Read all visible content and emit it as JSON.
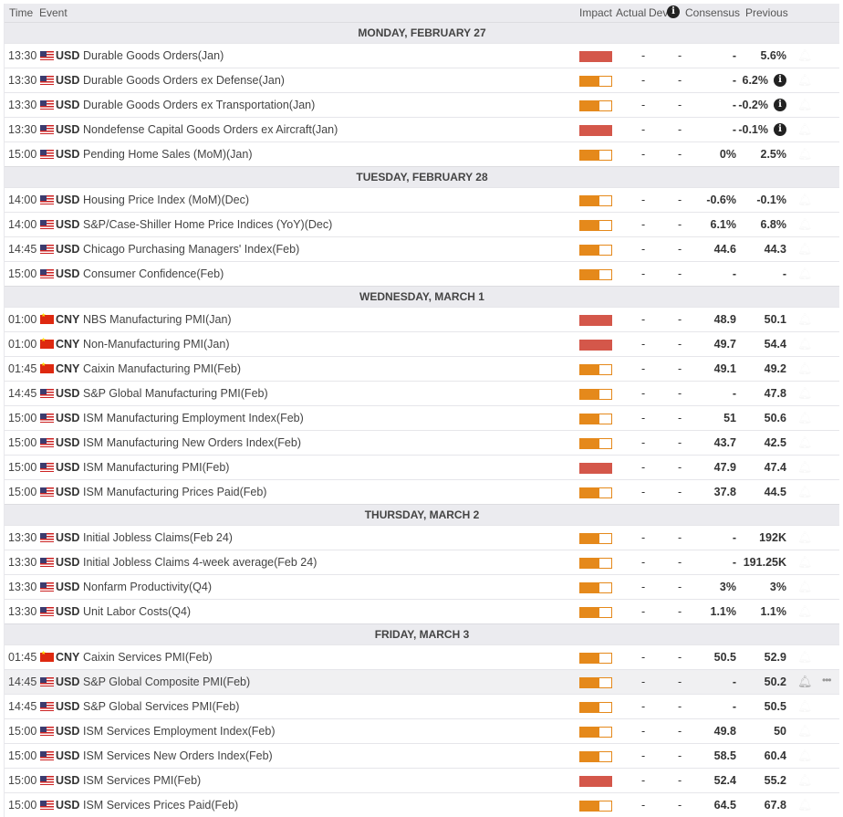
{
  "header": {
    "time": "Time",
    "event": "Event",
    "impact": "Impact",
    "actual": "Actual",
    "dev": "Dev",
    "consensus": "Consensus",
    "previous": "Previous"
  },
  "colors": {
    "high": "#d4574a",
    "medium": "#e5891b"
  },
  "days": [
    {
      "label": "MONDAY, FEBRUARY 27",
      "rows": [
        {
          "time": "13:30",
          "flag": "us",
          "currency": "USD",
          "event": "Durable Goods Orders(Jan)",
          "impact": "high",
          "actual": "-",
          "dev": "-",
          "consensus": "-",
          "previous": "5.6%"
        },
        {
          "time": "13:30",
          "flag": "us",
          "currency": "USD",
          "event": "Durable Goods Orders ex Defense(Jan)",
          "impact": "medium",
          "actual": "-",
          "dev": "-",
          "consensus": "-",
          "previous": "6.2%",
          "info": true
        },
        {
          "time": "13:30",
          "flag": "us",
          "currency": "USD",
          "event": "Durable Goods Orders ex Transportation(Jan)",
          "impact": "medium",
          "actual": "-",
          "dev": "-",
          "consensus": "-",
          "previous": "-0.2%",
          "info": true
        },
        {
          "time": "13:30",
          "flag": "us",
          "currency": "USD",
          "event": "Nondefense Capital Goods Orders ex Aircraft(Jan)",
          "impact": "high",
          "actual": "-",
          "dev": "-",
          "consensus": "-",
          "previous": "-0.1%",
          "info": true
        },
        {
          "time": "15:00",
          "flag": "us",
          "currency": "USD",
          "event": "Pending Home Sales (MoM)(Jan)",
          "impact": "medium",
          "actual": "-",
          "dev": "-",
          "consensus": "0%",
          "previous": "2.5%"
        }
      ]
    },
    {
      "label": "TUESDAY, FEBRUARY 28",
      "rows": [
        {
          "time": "14:00",
          "flag": "us",
          "currency": "USD",
          "event": "Housing Price Index (MoM)(Dec)",
          "impact": "medium",
          "actual": "-",
          "dev": "-",
          "consensus": "-0.6%",
          "previous": "-0.1%"
        },
        {
          "time": "14:00",
          "flag": "us",
          "currency": "USD",
          "event": "S&P/Case-Shiller Home Price Indices (YoY)(Dec)",
          "impact": "medium",
          "actual": "-",
          "dev": "-",
          "consensus": "6.1%",
          "previous": "6.8%"
        },
        {
          "time": "14:45",
          "flag": "us",
          "currency": "USD",
          "event": "Chicago Purchasing Managers' Index(Feb)",
          "impact": "medium",
          "actual": "-",
          "dev": "-",
          "consensus": "44.6",
          "previous": "44.3"
        },
        {
          "time": "15:00",
          "flag": "us",
          "currency": "USD",
          "event": "Consumer Confidence(Feb)",
          "impact": "medium",
          "actual": "-",
          "dev": "-",
          "consensus": "-",
          "previous": "-"
        }
      ]
    },
    {
      "label": "WEDNESDAY, MARCH 1",
      "rows": [
        {
          "time": "01:00",
          "flag": "cn",
          "currency": "CNY",
          "event": "NBS Manufacturing PMI(Jan)",
          "impact": "high",
          "actual": "-",
          "dev": "-",
          "consensus": "48.9",
          "previous": "50.1"
        },
        {
          "time": "01:00",
          "flag": "cn",
          "currency": "CNY",
          "event": "Non-Manufacturing PMI(Jan)",
          "impact": "high",
          "actual": "-",
          "dev": "-",
          "consensus": "49.7",
          "previous": "54.4"
        },
        {
          "time": "01:45",
          "flag": "cn",
          "currency": "CNY",
          "event": "Caixin Manufacturing PMI(Feb)",
          "impact": "medium",
          "actual": "-",
          "dev": "-",
          "consensus": "49.1",
          "previous": "49.2"
        },
        {
          "time": "14:45",
          "flag": "us",
          "currency": "USD",
          "event": "S&P Global Manufacturing PMI(Feb)",
          "impact": "medium",
          "actual": "-",
          "dev": "-",
          "consensus": "-",
          "previous": "47.8"
        },
        {
          "time": "15:00",
          "flag": "us",
          "currency": "USD",
          "event": "ISM Manufacturing Employment Index(Feb)",
          "impact": "medium",
          "actual": "-",
          "dev": "-",
          "consensus": "51",
          "previous": "50.6"
        },
        {
          "time": "15:00",
          "flag": "us",
          "currency": "USD",
          "event": "ISM Manufacturing New Orders Index(Feb)",
          "impact": "medium",
          "actual": "-",
          "dev": "-",
          "consensus": "43.7",
          "previous": "42.5"
        },
        {
          "time": "15:00",
          "flag": "us",
          "currency": "USD",
          "event": "ISM Manufacturing PMI(Feb)",
          "impact": "high",
          "actual": "-",
          "dev": "-",
          "consensus": "47.9",
          "previous": "47.4"
        },
        {
          "time": "15:00",
          "flag": "us",
          "currency": "USD",
          "event": "ISM Manufacturing Prices Paid(Feb)",
          "impact": "medium",
          "actual": "-",
          "dev": "-",
          "consensus": "37.8",
          "previous": "44.5"
        }
      ]
    },
    {
      "label": "THURSDAY, MARCH 2",
      "rows": [
        {
          "time": "13:30",
          "flag": "us",
          "currency": "USD",
          "event": "Initial Jobless Claims(Feb 24)",
          "impact": "medium",
          "actual": "-",
          "dev": "-",
          "consensus": "-",
          "previous": "192K"
        },
        {
          "time": "13:30",
          "flag": "us",
          "currency": "USD",
          "event": "Initial Jobless Claims 4-week average(Feb 24)",
          "impact": "medium",
          "actual": "-",
          "dev": "-",
          "consensus": "-",
          "previous": "191.25K"
        },
        {
          "time": "13:30",
          "flag": "us",
          "currency": "USD",
          "event": "Nonfarm Productivity(Q4)",
          "impact": "medium",
          "actual": "-",
          "dev": "-",
          "consensus": "3%",
          "previous": "3%"
        },
        {
          "time": "13:30",
          "flag": "us",
          "currency": "USD",
          "event": "Unit Labor Costs(Q4)",
          "impact": "medium",
          "actual": "-",
          "dev": "-",
          "consensus": "1.1%",
          "previous": "1.1%"
        }
      ]
    },
    {
      "label": "FRIDAY, MARCH 3",
      "rows": [
        {
          "time": "01:45",
          "flag": "cn",
          "currency": "CNY",
          "event": "Caixin Services PMI(Feb)",
          "impact": "medium",
          "actual": "-",
          "dev": "-",
          "consensus": "50.5",
          "previous": "52.9"
        },
        {
          "time": "14:45",
          "flag": "us",
          "currency": "USD",
          "event": "S&P Global Composite PMI(Feb)",
          "impact": "medium",
          "actual": "-",
          "dev": "-",
          "consensus": "-",
          "previous": "50.2",
          "hover": true
        },
        {
          "time": "14:45",
          "flag": "us",
          "currency": "USD",
          "event": "S&P Global Services PMI(Feb)",
          "impact": "medium",
          "actual": "-",
          "dev": "-",
          "consensus": "-",
          "previous": "50.5"
        },
        {
          "time": "15:00",
          "flag": "us",
          "currency": "USD",
          "event": "ISM Services Employment Index(Feb)",
          "impact": "medium",
          "actual": "-",
          "dev": "-",
          "consensus": "49.8",
          "previous": "50"
        },
        {
          "time": "15:00",
          "flag": "us",
          "currency": "USD",
          "event": "ISM Services New Orders Index(Feb)",
          "impact": "medium",
          "actual": "-",
          "dev": "-",
          "consensus": "58.5",
          "previous": "60.4"
        },
        {
          "time": "15:00",
          "flag": "us",
          "currency": "USD",
          "event": "ISM Services PMI(Feb)",
          "impact": "high",
          "actual": "-",
          "dev": "-",
          "consensus": "52.4",
          "previous": "55.2"
        },
        {
          "time": "15:00",
          "flag": "us",
          "currency": "USD",
          "event": "ISM Services Prices Paid(Feb)",
          "impact": "medium",
          "actual": "-",
          "dev": "-",
          "consensus": "64.5",
          "previous": "67.8"
        }
      ]
    }
  ]
}
